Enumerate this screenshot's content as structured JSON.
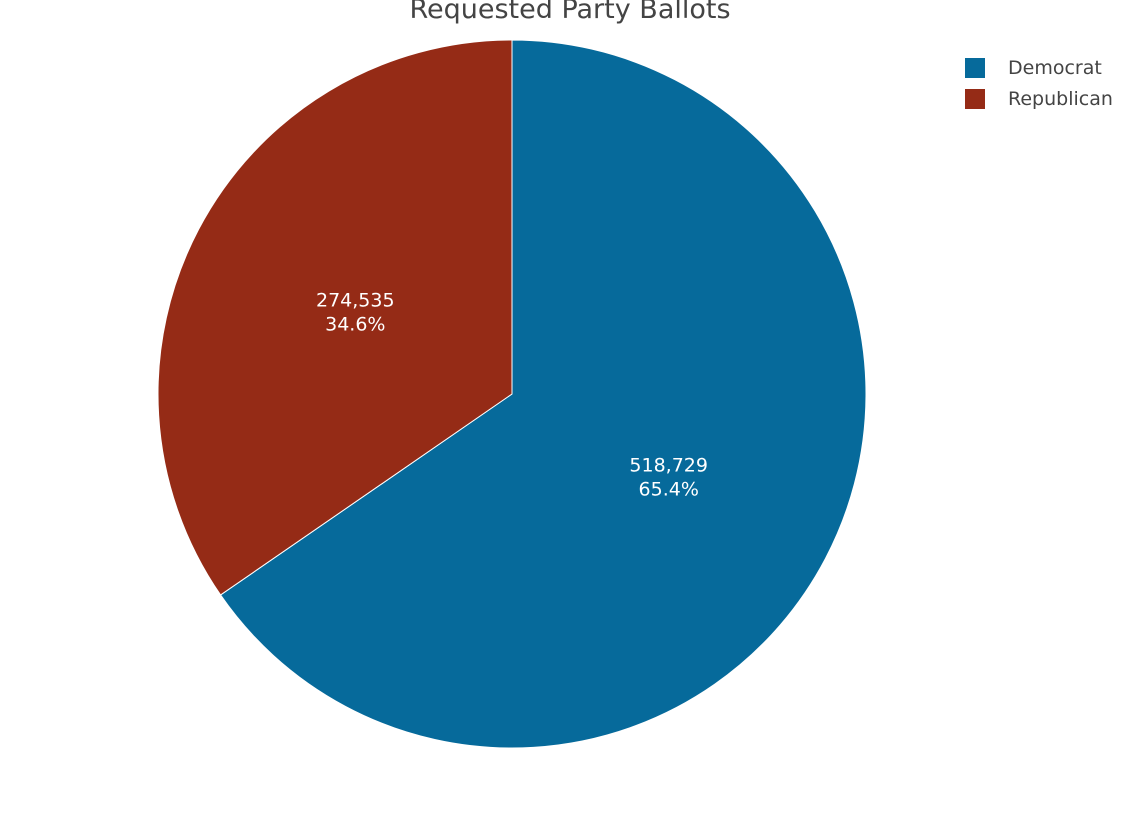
{
  "chart_data": {
    "type": "pie",
    "title": "Requested Party Ballots",
    "categories": [
      "Democrat",
      "Republican"
    ],
    "values": [
      518729,
      274535
    ],
    "value_labels": [
      "518,729",
      "274,535"
    ],
    "percent_labels": [
      "65.4%",
      "34.6%"
    ],
    "colors": [
      "#066a9b",
      "#952b16"
    ],
    "legend_position": "top-right"
  }
}
